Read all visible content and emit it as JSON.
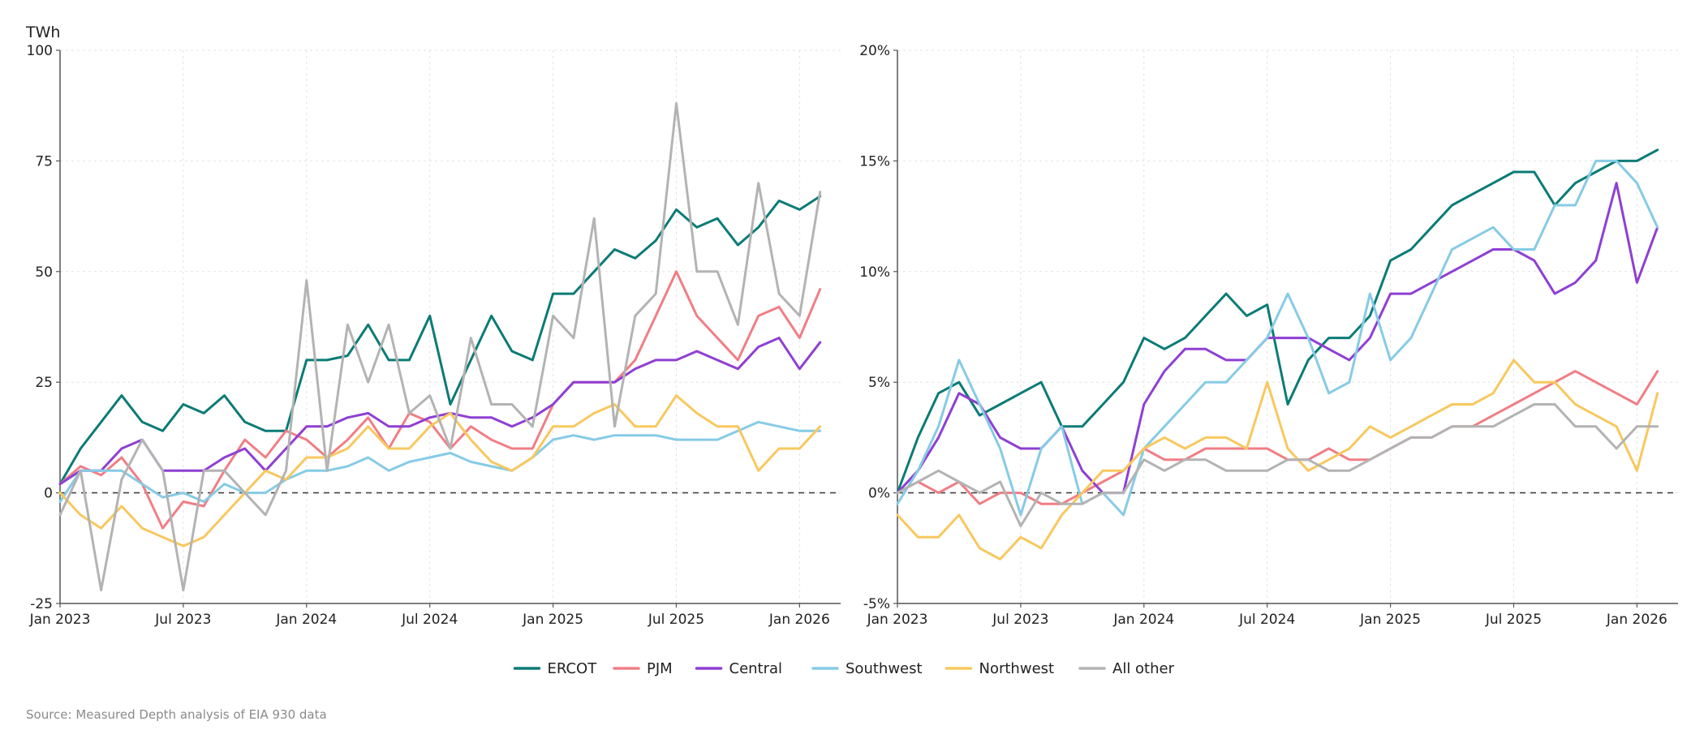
{
  "source": "Source: Measured Depth analysis of EIA 930 data",
  "legend": [
    {
      "name": "ERCOT",
      "color": "#0b7b76"
    },
    {
      "name": "PJM",
      "color": "#f07e85"
    },
    {
      "name": "Central",
      "color": "#8f3fd3"
    },
    {
      "name": "Southwest",
      "color": "#86cbe5"
    },
    {
      "name": "Northwest",
      "color": "#f8c85f"
    },
    {
      "name": "All other",
      "color": "#b3b3b3"
    }
  ],
  "chart_data": [
    {
      "type": "line",
      "unit_label": "TWh",
      "xlim": [
        "2023-01",
        "2026-03"
      ],
      "x_ticks": [
        "Jan 2023",
        "Jul 2023",
        "Jan 2024",
        "Jul 2024",
        "Jan 2025",
        "Jul 2025",
        "Jan 2026"
      ],
      "ylim": [
        -25,
        100
      ],
      "y_ticks": [
        "-25",
        "0",
        "25",
        "50",
        "75",
        "100"
      ],
      "grid": true,
      "zero_line": true,
      "x": [
        "2023-01",
        "2023-02",
        "2023-03",
        "2023-04",
        "2023-05",
        "2023-06",
        "2023-07",
        "2023-08",
        "2023-09",
        "2023-10",
        "2023-11",
        "2023-12",
        "2024-01",
        "2024-02",
        "2024-03",
        "2024-04",
        "2024-05",
        "2024-06",
        "2024-07",
        "2024-08",
        "2024-09",
        "2024-10",
        "2024-11",
        "2024-12",
        "2025-01",
        "2025-02",
        "2025-03",
        "2025-04",
        "2025-05",
        "2025-06",
        "2025-07",
        "2025-08",
        "2025-09",
        "2025-10",
        "2025-11",
        "2025-12",
        "2026-01",
        "2026-02"
      ],
      "series": [
        {
          "name": "ERCOT",
          "values": [
            2,
            10,
            16,
            22,
            16,
            14,
            20,
            18,
            22,
            16,
            14,
            14,
            30,
            30,
            31,
            38,
            30,
            30,
            40,
            20,
            30,
            40,
            32,
            30,
            45,
            45,
            50,
            55,
            53,
            57,
            64,
            60,
            62,
            56,
            60,
            66,
            64,
            67
          ]
        },
        {
          "name": "PJM",
          "values": [
            2,
            6,
            4,
            8,
            2,
            -8,
            -2,
            -3,
            5,
            12,
            8,
            14,
            12,
            8,
            12,
            17,
            10,
            18,
            16,
            10,
            15,
            12,
            10,
            10,
            20,
            25,
            25,
            25,
            30,
            40,
            50,
            40,
            35,
            30,
            40,
            42,
            35,
            46
          ]
        },
        {
          "name": "Central",
          "values": [
            2,
            5,
            5,
            10,
            12,
            5,
            5,
            5,
            8,
            10,
            5,
            10,
            15,
            15,
            17,
            18,
            15,
            15,
            17,
            18,
            17,
            17,
            15,
            17,
            20,
            25,
            25,
            25,
            28,
            30,
            30,
            32,
            30,
            28,
            33,
            35,
            28,
            34
          ]
        },
        {
          "name": "Southwest",
          "values": [
            -2,
            5,
            5,
            5,
            2,
            -1,
            0,
            -2,
            2,
            0,
            0,
            3,
            5,
            5,
            6,
            8,
            5,
            7,
            8,
            9,
            7,
            6,
            5,
            8,
            12,
            13,
            12,
            13,
            13,
            13,
            12,
            12,
            12,
            14,
            16,
            15,
            14,
            14
          ]
        },
        {
          "name": "Northwest",
          "values": [
            0,
            -5,
            -8,
            -3,
            -8,
            -10,
            -12,
            -10,
            -5,
            0,
            5,
            3,
            8,
            8,
            10,
            15,
            10,
            10,
            15,
            18,
            12,
            7,
            5,
            8,
            15,
            15,
            18,
            20,
            15,
            15,
            22,
            18,
            15,
            15,
            5,
            10,
            10,
            15
          ]
        },
        {
          "name": "All other",
          "values": [
            -5,
            5,
            -22,
            3,
            12,
            5,
            -22,
            5,
            5,
            0,
            -5,
            5,
            48,
            5,
            38,
            25,
            38,
            18,
            22,
            10,
            35,
            20,
            20,
            15,
            40,
            35,
            62,
            15,
            40,
            45,
            88,
            50,
            50,
            38,
            70,
            45,
            40,
            68
          ]
        }
      ]
    },
    {
      "type": "line",
      "xlim": [
        "2023-01",
        "2026-03"
      ],
      "x_ticks": [
        "Jan 2023",
        "Jul 2023",
        "Jan 2024",
        "Jul 2024",
        "Jan 2025",
        "Jul 2025",
        "Jan 2026"
      ],
      "ylim": [
        -5,
        20
      ],
      "y_ticks": [
        "-5%",
        "0%",
        "5%",
        "10%",
        "15%",
        "20%"
      ],
      "grid": true,
      "zero_line": true,
      "x": [
        "2023-01",
        "2023-02",
        "2023-03",
        "2023-04",
        "2023-05",
        "2023-06",
        "2023-07",
        "2023-08",
        "2023-09",
        "2023-10",
        "2023-11",
        "2023-12",
        "2024-01",
        "2024-02",
        "2024-03",
        "2024-04",
        "2024-05",
        "2024-06",
        "2024-07",
        "2024-08",
        "2024-09",
        "2024-10",
        "2024-11",
        "2024-12",
        "2025-01",
        "2025-02",
        "2025-03",
        "2025-04",
        "2025-05",
        "2025-06",
        "2025-07",
        "2025-08",
        "2025-09",
        "2025-10",
        "2025-11",
        "2025-12",
        "2026-01",
        "2026-02"
      ],
      "series": [
        {
          "name": "ERCOT",
          "values": [
            0,
            2.5,
            4.5,
            5,
            3.5,
            4,
            4.5,
            5,
            3,
            3,
            4,
            5,
            7,
            6.5,
            7,
            8,
            9,
            8,
            8.5,
            4,
            6,
            7,
            7,
            8,
            10.5,
            11,
            12,
            13,
            13.5,
            14,
            14.5,
            14.5,
            13,
            14,
            14.5,
            15,
            15,
            15.5
          ]
        },
        {
          "name": "PJM",
          "values": [
            0,
            0.5,
            0,
            0.5,
            -0.5,
            0,
            0,
            -0.5,
            -0.5,
            0,
            0.5,
            1,
            2,
            1.5,
            1.5,
            2,
            2,
            2,
            2,
            1.5,
            1.5,
            2,
            1.5,
            1.5,
            2,
            2.5,
            2.5,
            3,
            3,
            3.5,
            4,
            4.5,
            5,
            5.5,
            5,
            4.5,
            4,
            5.5
          ]
        },
        {
          "name": "Central",
          "values": [
            0,
            1,
            2.5,
            4.5,
            4,
            2.5,
            2,
            2,
            3,
            1,
            0,
            0,
            4,
            5.5,
            6.5,
            6.5,
            6,
            6,
            7,
            7,
            7,
            6.5,
            6,
            7,
            9,
            9,
            9.5,
            10,
            10.5,
            11,
            11,
            10.5,
            9,
            9.5,
            10.5,
            14,
            9.5,
            12
          ]
        },
        {
          "name": "Southwest",
          "values": [
            -0.5,
            1,
            3,
            6,
            4,
            2,
            -1,
            2,
            3,
            -0.5,
            0,
            -1,
            2,
            3,
            4,
            5,
            5,
            6,
            7,
            9,
            7,
            4.5,
            5,
            9,
            6,
            7,
            9,
            11,
            11.5,
            12,
            11,
            11,
            13,
            13,
            15,
            15,
            14,
            12
          ]
        },
        {
          "name": "Northwest",
          "values": [
            -1,
            -2,
            -2,
            -1,
            -2.5,
            -3,
            -2,
            -2.5,
            -1,
            0,
            1,
            1,
            2,
            2.5,
            2,
            2.5,
            2.5,
            2,
            5,
            2,
            1,
            1.5,
            2,
            3,
            2.5,
            3,
            3.5,
            4,
            4,
            4.5,
            6,
            5,
            5,
            4,
            3.5,
            3,
            1,
            4.5
          ]
        },
        {
          "name": "All other",
          "values": [
            0,
            0.5,
            1,
            0.5,
            0,
            0.5,
            -1.5,
            0,
            -0.5,
            -0.5,
            0,
            0,
            1.5,
            1,
            1.5,
            1.5,
            1,
            1,
            1,
            1.5,
            1.5,
            1,
            1,
            1.5,
            2,
            2.5,
            2.5,
            3,
            3,
            3,
            3.5,
            4,
            4,
            3,
            3,
            2,
            3,
            3
          ]
        }
      ]
    }
  ]
}
